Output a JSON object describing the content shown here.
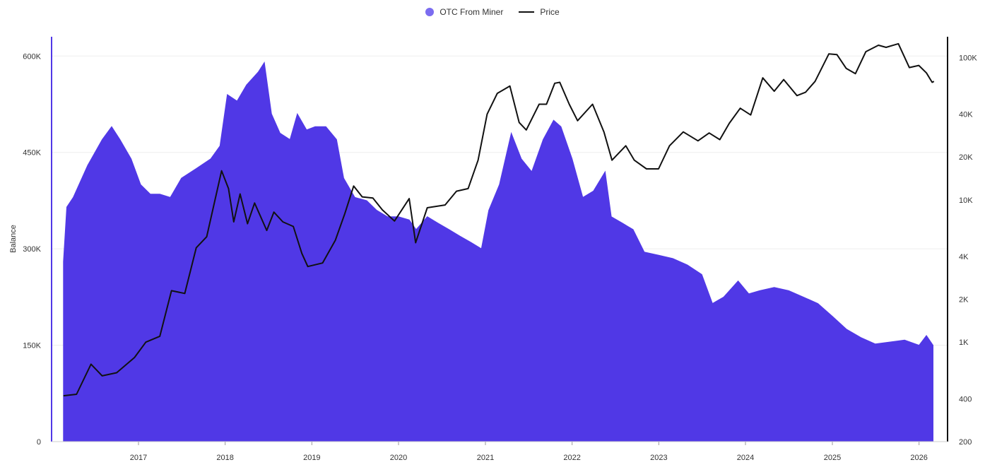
{
  "chart_data": {
    "type": "area",
    "legend": [
      {
        "name": "OTC From Miner",
        "color": "#5038e6",
        "legend_color": "#7b6cf0",
        "marker": "dot"
      },
      {
        "name": "Price",
        "color": "#111111",
        "marker": "line"
      }
    ],
    "legend_position": "top-center",
    "ylabel_left": "Balance",
    "xlabel": "",
    "x_ticks": [
      "2017",
      "2018",
      "2019",
      "2020",
      "2021",
      "2022",
      "2023",
      "2024",
      "2025",
      "2026"
    ],
    "y_left": {
      "ticks": [
        0,
        150000,
        300000,
        450000,
        600000
      ],
      "tick_labels": [
        "0",
        "150K",
        "300K",
        "450K",
        "600K"
      ],
      "range": [
        0,
        630000
      ]
    },
    "y_right": {
      "scale": "log",
      "ticks": [
        200,
        400,
        1000,
        2000,
        4000,
        10000,
        20000,
        40000,
        100000
      ],
      "tick_labels": [
        "200",
        "400",
        "1K",
        "2K",
        "4K",
        "10K",
        "20K",
        "40K",
        "100K"
      ],
      "range": [
        200,
        140000
      ]
    },
    "x_range": [
      "2016-01-01",
      "2026-05-01"
    ],
    "grid": "horizontal",
    "series": [
      {
        "name": "OTC From Miner",
        "axis": "left",
        "points": [
          [
            "2016-02-20",
            280000
          ],
          [
            "2016-03-05",
            365000
          ],
          [
            "2016-04-01",
            380000
          ],
          [
            "2016-06-01",
            430000
          ],
          [
            "2016-08-01",
            470000
          ],
          [
            "2016-09-10",
            490000
          ],
          [
            "2016-10-15",
            470000
          ],
          [
            "2016-12-01",
            440000
          ],
          [
            "2017-01-10",
            400000
          ],
          [
            "2017-02-20",
            385000
          ],
          [
            "2017-04-01",
            385000
          ],
          [
            "2017-05-15",
            380000
          ],
          [
            "2017-07-01",
            410000
          ],
          [
            "2017-09-01",
            425000
          ],
          [
            "2017-11-01",
            440000
          ],
          [
            "2017-12-10",
            460000
          ],
          [
            "2018-01-10",
            540000
          ],
          [
            "2018-02-20",
            530000
          ],
          [
            "2018-04-01",
            555000
          ],
          [
            "2018-05-20",
            575000
          ],
          [
            "2018-06-15",
            590000
          ],
          [
            "2018-07-15",
            510000
          ],
          [
            "2018-08-20",
            480000
          ],
          [
            "2018-10-01",
            470000
          ],
          [
            "2018-11-01",
            510000
          ],
          [
            "2018-12-10",
            485000
          ],
          [
            "2019-01-15",
            490000
          ],
          [
            "2019-03-01",
            490000
          ],
          [
            "2019-04-15",
            470000
          ],
          [
            "2019-05-15",
            410000
          ],
          [
            "2019-07-01",
            380000
          ],
          [
            "2019-08-20",
            375000
          ],
          [
            "2019-10-01",
            360000
          ],
          [
            "2019-11-15",
            350000
          ],
          [
            "2020-01-01",
            350000
          ],
          [
            "2020-02-15",
            345000
          ],
          [
            "2020-03-15",
            330000
          ],
          [
            "2020-05-01",
            350000
          ],
          [
            "2020-06-15",
            340000
          ],
          [
            "2020-08-01",
            330000
          ],
          [
            "2020-09-15",
            320000
          ],
          [
            "2020-11-01",
            310000
          ],
          [
            "2020-12-15",
            300000
          ],
          [
            "2021-01-15",
            360000
          ],
          [
            "2021-03-01",
            400000
          ],
          [
            "2021-04-20",
            480000
          ],
          [
            "2021-06-01",
            440000
          ],
          [
            "2021-07-15",
            420000
          ],
          [
            "2021-09-01",
            470000
          ],
          [
            "2021-10-15",
            500000
          ],
          [
            "2021-11-15",
            490000
          ],
          [
            "2022-01-01",
            440000
          ],
          [
            "2022-02-15",
            380000
          ],
          [
            "2022-04-01",
            390000
          ],
          [
            "2022-05-20",
            420000
          ],
          [
            "2022-06-15",
            350000
          ],
          [
            "2022-08-01",
            340000
          ],
          [
            "2022-09-15",
            330000
          ],
          [
            "2022-11-01",
            295000
          ],
          [
            "2023-01-01",
            290000
          ],
          [
            "2023-03-01",
            285000
          ],
          [
            "2023-05-01",
            275000
          ],
          [
            "2023-07-01",
            260000
          ],
          [
            "2023-08-15",
            215000
          ],
          [
            "2023-10-01",
            225000
          ],
          [
            "2023-12-01",
            250000
          ],
          [
            "2024-01-15",
            230000
          ],
          [
            "2024-03-01",
            235000
          ],
          [
            "2024-05-01",
            240000
          ],
          [
            "2024-07-01",
            235000
          ],
          [
            "2024-09-01",
            225000
          ],
          [
            "2024-11-01",
            215000
          ],
          [
            "2025-01-01",
            195000
          ],
          [
            "2025-03-01",
            175000
          ],
          [
            "2025-05-01",
            162000
          ],
          [
            "2025-07-01",
            152000
          ],
          [
            "2025-09-01",
            155000
          ],
          [
            "2025-11-01",
            158000
          ],
          [
            "2026-01-01",
            150000
          ],
          [
            "2026-02-01",
            165000
          ],
          [
            "2026-03-01",
            150000
          ]
        ]
      },
      {
        "name": "Price",
        "axis": "right",
        "points": [
          [
            "2016-02-20",
            420
          ],
          [
            "2016-04-15",
            430
          ],
          [
            "2016-06-15",
            700
          ],
          [
            "2016-08-01",
            580
          ],
          [
            "2016-10-01",
            610
          ],
          [
            "2016-12-15",
            780
          ],
          [
            "2017-02-01",
            1000
          ],
          [
            "2017-04-01",
            1100
          ],
          [
            "2017-05-20",
            2300
          ],
          [
            "2017-07-15",
            2200
          ],
          [
            "2017-09-01",
            4600
          ],
          [
            "2017-10-15",
            5500
          ],
          [
            "2017-12-17",
            16000
          ],
          [
            "2018-01-15",
            12000
          ],
          [
            "2018-02-06",
            7000
          ],
          [
            "2018-03-05",
            11000
          ],
          [
            "2018-04-05",
            6800
          ],
          [
            "2018-05-05",
            9500
          ],
          [
            "2018-06-25",
            6100
          ],
          [
            "2018-07-25",
            8200
          ],
          [
            "2018-09-01",
            7000
          ],
          [
            "2018-10-15",
            6500
          ],
          [
            "2018-11-20",
            4200
          ],
          [
            "2018-12-15",
            3400
          ],
          [
            "2019-02-15",
            3600
          ],
          [
            "2019-04-10",
            5200
          ],
          [
            "2019-05-20",
            8000
          ],
          [
            "2019-06-26",
            12500
          ],
          [
            "2019-08-01",
            10500
          ],
          [
            "2019-09-15",
            10300
          ],
          [
            "2019-10-25",
            8500
          ],
          [
            "2019-12-15",
            7100
          ],
          [
            "2020-02-15",
            10200
          ],
          [
            "2020-03-13",
            5000
          ],
          [
            "2020-05-01",
            8800
          ],
          [
            "2020-07-15",
            9200
          ],
          [
            "2020-09-01",
            11500
          ],
          [
            "2020-10-20",
            12000
          ],
          [
            "2020-12-01",
            19000
          ],
          [
            "2021-01-08",
            40000
          ],
          [
            "2021-02-20",
            56000
          ],
          [
            "2021-04-14",
            63000
          ],
          [
            "2021-05-23",
            35000
          ],
          [
            "2021-06-22",
            31000
          ],
          [
            "2021-08-15",
            47000
          ],
          [
            "2021-09-15",
            47000
          ],
          [
            "2021-10-20",
            66000
          ],
          [
            "2021-11-10",
            67000
          ],
          [
            "2021-12-20",
            47000
          ],
          [
            "2022-01-24",
            36000
          ],
          [
            "2022-03-28",
            47000
          ],
          [
            "2022-05-15",
            30000
          ],
          [
            "2022-06-18",
            19000
          ],
          [
            "2022-08-15",
            24000
          ],
          [
            "2022-09-20",
            19000
          ],
          [
            "2022-11-10",
            16500
          ],
          [
            "2022-12-31",
            16500
          ],
          [
            "2023-02-15",
            24000
          ],
          [
            "2023-04-14",
            30000
          ],
          [
            "2023-06-15",
            26000
          ],
          [
            "2023-08-01",
            29500
          ],
          [
            "2023-09-15",
            26500
          ],
          [
            "2023-10-25",
            34500
          ],
          [
            "2023-12-10",
            44000
          ],
          [
            "2024-01-23",
            39500
          ],
          [
            "2024-03-14",
            72000
          ],
          [
            "2024-05-01",
            58000
          ],
          [
            "2024-06-10",
            70000
          ],
          [
            "2024-08-05",
            54000
          ],
          [
            "2024-09-10",
            57000
          ],
          [
            "2024-10-20",
            68000
          ],
          [
            "2024-12-17",
            106000
          ],
          [
            "2025-01-20",
            105000
          ],
          [
            "2025-02-28",
            84000
          ],
          [
            "2025-04-08",
            77000
          ],
          [
            "2025-05-22",
            110000
          ],
          [
            "2025-07-14",
            122000
          ],
          [
            "2025-08-15",
            118000
          ],
          [
            "2025-10-06",
            125000
          ],
          [
            "2025-11-21",
            85000
          ],
          [
            "2025-12-31",
            88000
          ],
          [
            "2026-02-01",
            78000
          ],
          [
            "2026-02-25",
            67000
          ],
          [
            "2026-03-05",
            68000
          ]
        ]
      }
    ]
  }
}
